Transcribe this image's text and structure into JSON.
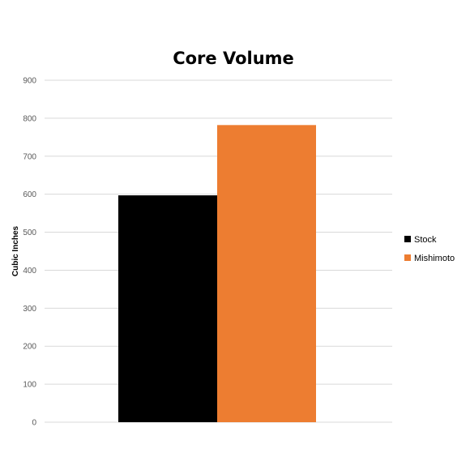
{
  "chart_data": {
    "type": "bar",
    "title": "Core Volume",
    "xlabel": "",
    "ylabel": "Cubic Inches",
    "ylim": [
      0,
      900
    ],
    "yticks": [
      0,
      100,
      200,
      300,
      400,
      500,
      600,
      700,
      800,
      900
    ],
    "grid": true,
    "legend_position": "right",
    "categories": [
      ""
    ],
    "series": [
      {
        "name": "Stock",
        "color": "#000000",
        "values": [
          597
        ]
      },
      {
        "name": "Mishimoto",
        "color": "#ED7D31",
        "values": [
          782
        ]
      }
    ]
  }
}
